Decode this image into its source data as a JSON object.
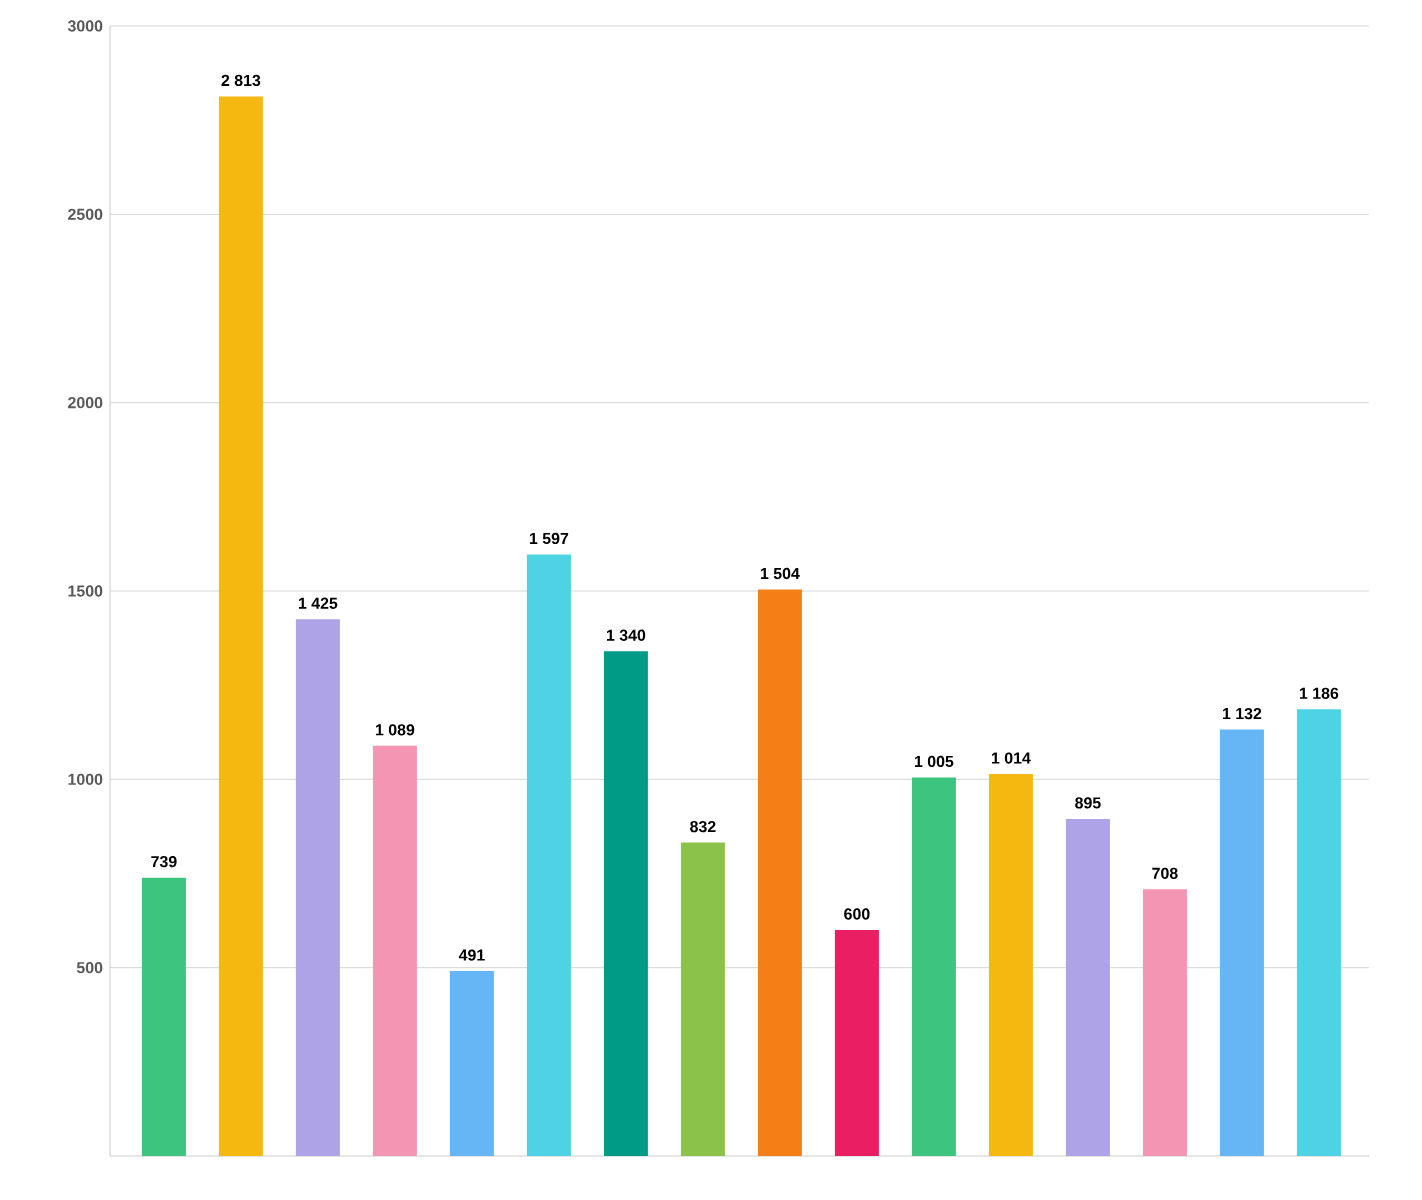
{
  "chart_data": {
    "type": "bar",
    "categories": [
      null,
      null,
      null,
      null,
      null,
      null,
      null,
      null,
      null,
      null,
      null,
      null,
      null,
      null,
      null,
      null
    ],
    "values": [
      739,
      2813,
      1425,
      1089,
      491,
      1597,
      1340,
      832,
      1504,
      600,
      1005,
      1014,
      895,
      708,
      1132,
      1186
    ],
    "value_labels": [
      "739",
      "2 813",
      "1 425",
      "1 089",
      "491",
      "1 597",
      "1 340",
      "832",
      "1 504",
      "600",
      "1 005",
      "1 014",
      "895",
      "708",
      "1 132",
      "1 186"
    ],
    "colors": [
      "#3dc47e",
      "#f4b811",
      "#ada3e6",
      "#f595b4",
      "#66b5f5",
      "#4dd3e3",
      "#009b86",
      "#8bc34a",
      "#f57f17",
      "#e91e63",
      "#3dc47e",
      "#f4b811",
      "#ada3e6",
      "#f595b4",
      "#66b5f5",
      "#4dd3e3"
    ],
    "ylim": [
      0,
      3000
    ],
    "yticks": [
      500,
      1000,
      1500,
      2000,
      2500,
      3000
    ],
    "grid": "y"
  }
}
